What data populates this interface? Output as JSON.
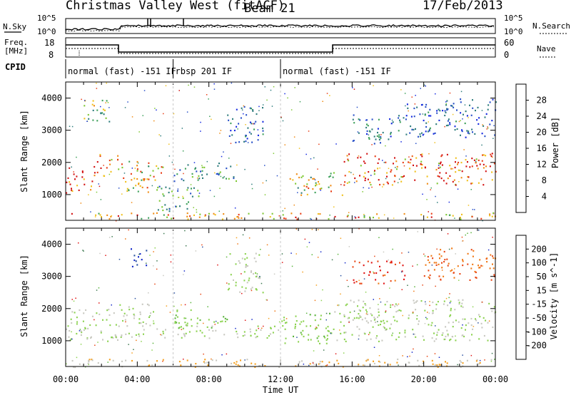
{
  "header": {
    "title": "Christmas Valley West (fitACF)",
    "beam": "Beam 21",
    "date": "17/Feb/2013"
  },
  "strips": {
    "nsky_label": "N.Sky",
    "nsky_ticks": [
      "10^5",
      "10^0"
    ],
    "nsearch_label": "N.Search",
    "nsearch_ticks": [
      "10^5",
      "10^0"
    ],
    "freq_label_1": "Freq.",
    "freq_label_2": "[MHz]",
    "freq_ticks": [
      "18",
      "8"
    ],
    "nave_label": "Nave",
    "nave_ticks": [
      "60",
      "0"
    ],
    "cpid_label": "CPID",
    "cpid_segments": [
      {
        "label": "normal (fast) -151 IF",
        "start_hour": 0,
        "end_hour": 6
      },
      {
        "label": "rbsp 201 IF",
        "start_hour": 6,
        "end_hour": 12
      },
      {
        "label": "normal (fast) -151 IF",
        "start_hour": 12,
        "end_hour": 24
      }
    ]
  },
  "chart_data": [
    {
      "type": "heatmap",
      "panel": "power",
      "ylabel": "Slant Range [km]",
      "yticks": [
        1000,
        2000,
        3000,
        4000
      ],
      "ylim": [
        200,
        4500
      ],
      "xlim_hours": [
        0,
        24
      ],
      "colorbar": {
        "label": "Power [dB]",
        "ticks": [
          4,
          8,
          12,
          16,
          20,
          24,
          28
        ],
        "colors": [
          "#1428e0",
          "#2850c8",
          "#2f7d7d",
          "#3da05a",
          "#7ec832",
          "#f0c01c",
          "#f08c14",
          "#e83c14",
          "#d21010"
        ]
      },
      "echo_bands": [
        {
          "t0": 0.0,
          "t1": 1.5,
          "r0": 1050,
          "r1": 1850,
          "level": 28
        },
        {
          "t0": 1.5,
          "t1": 3.0,
          "r0": 1600,
          "r1": 2300,
          "level": 24
        },
        {
          "t0": 1.0,
          "t1": 2.5,
          "r0": 3200,
          "r1": 4000,
          "level": 16
        },
        {
          "t0": 3.0,
          "t1": 5.5,
          "r0": 1100,
          "r1": 2100,
          "level": 20
        },
        {
          "t0": 5.0,
          "t1": 7.5,
          "r0": 500,
          "r1": 1300,
          "level": 12
        },
        {
          "t0": 6.0,
          "t1": 9.5,
          "r0": 1400,
          "r1": 2000,
          "level": 10
        },
        {
          "t0": 9.0,
          "t1": 11.0,
          "r0": 2600,
          "r1": 3800,
          "level": 6
        },
        {
          "t0": 12.5,
          "t1": 15.5,
          "r0": 1000,
          "r1": 1700,
          "level": 18
        },
        {
          "t0": 15.5,
          "t1": 24.0,
          "r0": 1300,
          "r1": 2300,
          "level": 26
        },
        {
          "t0": 16.0,
          "t1": 19.0,
          "r0": 2600,
          "r1": 3500,
          "level": 8
        },
        {
          "t0": 19.0,
          "t1": 24.0,
          "r0": 2800,
          "r1": 4000,
          "level": 6
        },
        {
          "t0": 0.0,
          "t1": 24.0,
          "r0": 250,
          "r1": 450,
          "level": 22
        }
      ]
    },
    {
      "type": "heatmap",
      "panel": "velocity",
      "ylabel": "Slant Range [km]",
      "yticks": [
        1000,
        2000,
        3000,
        4000
      ],
      "ylim": [
        200,
        4500
      ],
      "xlim_hours": [
        0,
        24
      ],
      "xlabel": "Time UT",
      "xticks": [
        "00:00",
        "04:00",
        "08:00",
        "12:00",
        "16:00",
        "20:00",
        "00:00"
      ],
      "colorbar": {
        "label": "Velocity [m s^-1]",
        "ticks": [
          200,
          100,
          50,
          15,
          -15,
          -50,
          -100,
          -200
        ],
        "colors": [
          "#1428c8",
          "#2850a0",
          "#3c7850",
          "#5ab43c",
          "#8cd250",
          "#c8c8c0",
          "#f5a020",
          "#f07814",
          "#e84614",
          "#e01414"
        ]
      },
      "echo_bands": [
        {
          "t0": 0.0,
          "t1": 3.0,
          "r0": 1000,
          "r1": 2000,
          "level": 0
        },
        {
          "t0": 3.0,
          "t1": 5.0,
          "r0": 1100,
          "r1": 2200,
          "level": 0
        },
        {
          "t0": 3.5,
          "t1": 4.5,
          "r0": 3300,
          "r1": 3900,
          "level": 200
        },
        {
          "t0": 6.0,
          "t1": 9.0,
          "r0": 1400,
          "r1": 2000,
          "level": 40
        },
        {
          "t0": 5.0,
          "t1": 12.0,
          "r0": 1100,
          "r1": 1500,
          "level": 0
        },
        {
          "t0": 9.0,
          "t1": 11.0,
          "r0": 2500,
          "r1": 3800,
          "level": 0
        },
        {
          "t0": 12.0,
          "t1": 15.0,
          "r0": 900,
          "r1": 1900,
          "level": 40
        },
        {
          "t0": 15.0,
          "t1": 24.0,
          "r0": 1000,
          "r1": 2300,
          "level": 0
        },
        {
          "t0": 16.0,
          "t1": 19.0,
          "r0": 2800,
          "r1": 3500,
          "level": -200
        },
        {
          "t0": 20.0,
          "t1": 24.0,
          "r0": 2900,
          "r1": 3900,
          "level": -150
        },
        {
          "t0": 0.0,
          "t1": 24.0,
          "r0": 200,
          "r1": 450,
          "level": -50
        }
      ]
    }
  ]
}
